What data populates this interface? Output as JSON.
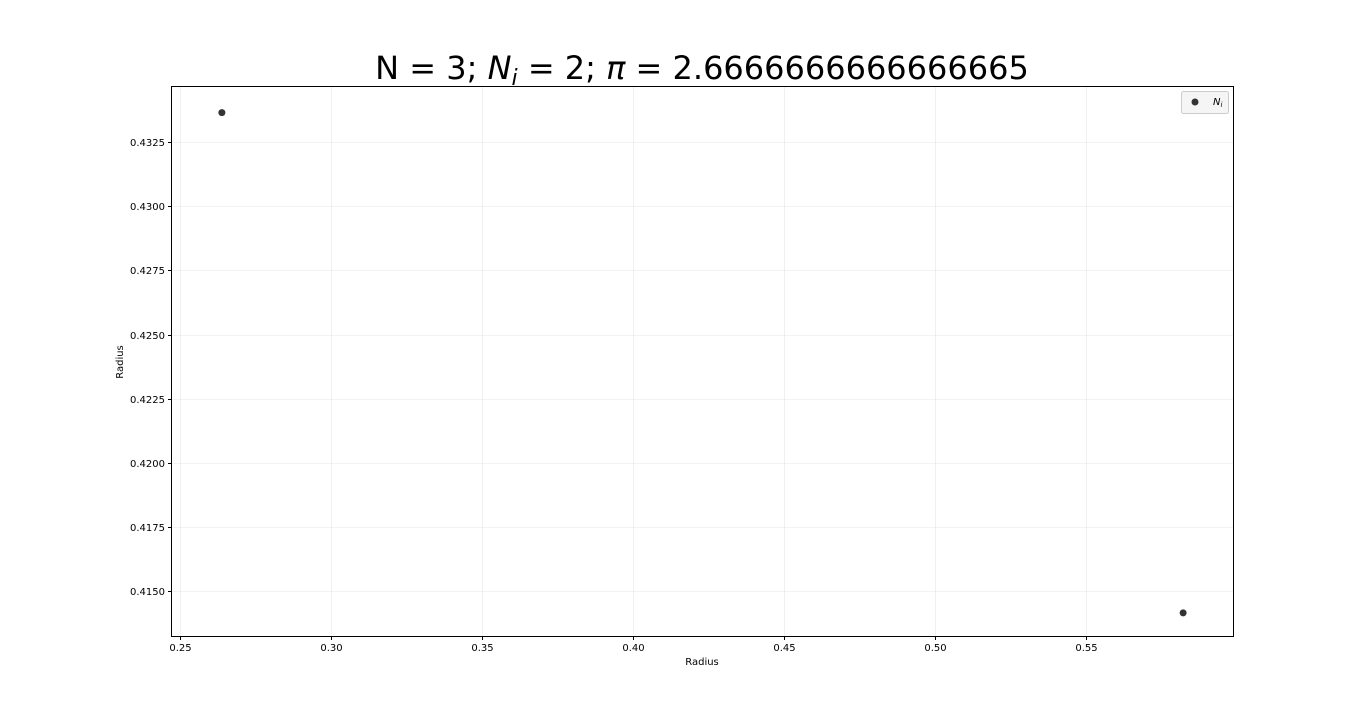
{
  "chart_data": {
    "type": "scatter",
    "title": {
      "p1": "N = 3; ",
      "ni_symbol": "N",
      "ni_sub": "i",
      "p2": " = 2; ",
      "pi_symbol": "π",
      "p3": " = 2.6666666666666665"
    },
    "xlabel": "Radius",
    "ylabel": "Radius",
    "xlim": [
      0.2475,
      0.5985
    ],
    "ylim": [
      0.41325,
      0.43465
    ],
    "xticks": [
      0.25,
      0.3,
      0.35,
      0.4,
      0.45,
      0.5,
      0.55
    ],
    "xtick_labels": [
      "0.25",
      "0.30",
      "0.35",
      "0.40",
      "0.45",
      "0.50",
      "0.55"
    ],
    "yticks": [
      0.415,
      0.4175,
      0.42,
      0.4225,
      0.425,
      0.4275,
      0.43,
      0.4325
    ],
    "ytick_labels": [
      "0.4150",
      "0.4175",
      "0.4200",
      "0.4225",
      "0.4250",
      "0.4275",
      "0.4300",
      "0.4325"
    ],
    "grid": true,
    "legend_placement": "top-right",
    "series": [
      {
        "name": "Nᵢ",
        "legend_symbol": "N",
        "legend_sub": "i",
        "color": "#333333",
        "x": [
          0.264,
          0.582
        ],
        "y": [
          0.43365,
          0.41415
        ]
      }
    ]
  }
}
